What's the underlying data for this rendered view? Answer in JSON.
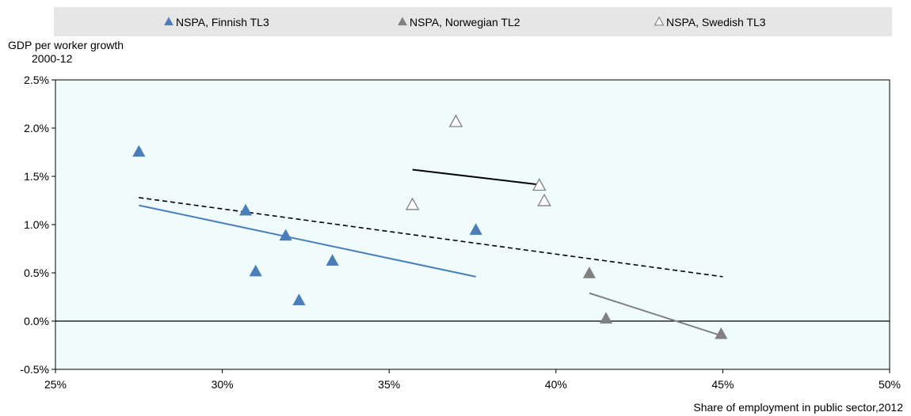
{
  "chart_data": {
    "type": "scatter",
    "title": "",
    "ylabel_lines": [
      "GDP per worker growth",
      "2000-12"
    ],
    "xlabel": "Share of employment in public sector,2012",
    "xlim": [
      25,
      50
    ],
    "ylim": [
      -0.5,
      2.5
    ],
    "x_ticks": [
      25,
      30,
      35,
      40,
      45,
      50
    ],
    "x_tick_labels": [
      "25%",
      "30%",
      "35%",
      "40%",
      "45%",
      "50%"
    ],
    "y_ticks": [
      -0.5,
      0.0,
      0.5,
      1.0,
      1.5,
      2.0,
      2.5
    ],
    "y_tick_labels": [
      "-0.5%",
      "0.0%",
      "0.5%",
      "1.0%",
      "1.5%",
      "2.0%",
      "2.5%"
    ],
    "grid": false,
    "legend_position": "top",
    "plot_background": "#f0fcfc",
    "legend_background": "#e6e6e6",
    "series": [
      {
        "name": "NSPA, Finnish TL3",
        "marker": "filled-triangle",
        "color": "#4a7ebb",
        "points": [
          [
            27.5,
            1.75
          ],
          [
            30.7,
            1.14
          ],
          [
            31.0,
            0.51
          ],
          [
            31.9,
            0.88
          ],
          [
            32.3,
            0.21
          ],
          [
            33.3,
            0.62
          ],
          [
            37.6,
            0.94
          ]
        ],
        "trend": [
          [
            27.5,
            1.2
          ],
          [
            37.6,
            0.46
          ]
        ]
      },
      {
        "name": "NSPA, Norwegian TL2",
        "marker": "filled-triangle",
        "color": "#808080",
        "points": [
          [
            41.0,
            0.49
          ],
          [
            41.5,
            0.02
          ],
          [
            44.95,
            -0.14
          ]
        ],
        "trend": [
          [
            41.0,
            0.29
          ],
          [
            44.95,
            -0.15
          ]
        ]
      },
      {
        "name": "NSPA, Swedish TL3",
        "marker": "open-triangle",
        "color": "#808080",
        "points": [
          [
            35.7,
            1.2
          ],
          [
            37.0,
            2.06
          ],
          [
            39.5,
            1.4
          ],
          [
            39.65,
            1.24
          ]
        ],
        "trend": [
          [
            35.7,
            1.57
          ],
          [
            39.6,
            1.41
          ]
        ]
      }
    ],
    "overall_trend": {
      "style": "dashed",
      "color": "#000000",
      "line": [
        [
          27.5,
          1.28
        ],
        [
          45.0,
          0.46
        ]
      ]
    }
  }
}
